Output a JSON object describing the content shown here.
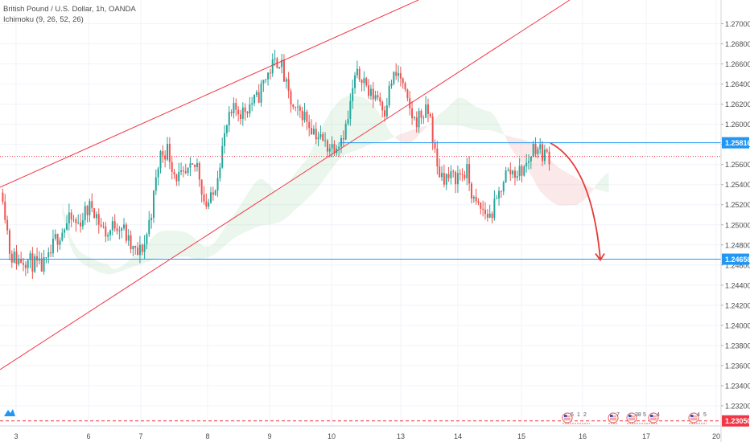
{
  "header": {
    "symbol_line": "British Pound / U.S. Dollar, 1h, OANDA",
    "indicator_line": "Ichimoku (9, 26, 52, 26)"
  },
  "chart_data": {
    "type": "candlestick",
    "title": "British Pound / U.S. Dollar, 1h, OANDA",
    "indicator": "Ichimoku (9, 26, 52, 26)",
    "ylim": [
      1.23,
      1.2722
    ],
    "y_ticks": [
      "1.27000",
      "1.26800",
      "1.26600",
      "1.26400",
      "1.26200",
      "1.26000",
      "1.25800",
      "1.25600",
      "1.25400",
      "1.25200",
      "1.25000",
      "1.24800",
      "1.24600",
      "1.24400",
      "1.24200",
      "1.24000",
      "1.23800",
      "1.23600",
      "1.23400",
      "1.23200"
    ],
    "x_ticks": [
      "3",
      "6",
      "7",
      "8",
      "9",
      "10",
      "13",
      "14",
      "15",
      "16",
      "17",
      "20"
    ],
    "price_labels": {
      "upper_level": "1.25816",
      "lower_level": "1.24658",
      "bottom_level": "1.23050"
    },
    "levels": {
      "upper": 1.25816,
      "lower": 1.24658,
      "current_dotted": 1.2568,
      "bottom_dashed": 1.2305
    },
    "candle_path": [
      1.2532,
      1.247,
      1.2465,
      1.2466,
      1.2462,
      1.2457,
      1.2462,
      1.2485,
      1.2495,
      1.2505,
      1.25,
      1.2512,
      1.252,
      1.25,
      1.249,
      1.2502,
      1.2498,
      1.2478,
      1.247,
      1.2482,
      1.252,
      1.257,
      1.2575,
      1.255,
      1.2545,
      1.2552,
      1.256,
      1.252,
      1.2525,
      1.2565,
      1.26,
      1.2615,
      1.2612,
      1.262,
      1.2625,
      1.2645,
      1.2658,
      1.2665,
      1.2632,
      1.261,
      1.2612,
      1.26,
      1.259,
      1.258,
      1.2578,
      1.2585,
      1.26,
      1.2645,
      1.265,
      1.2628,
      1.263,
      1.2615,
      1.2645,
      1.265,
      1.262,
      1.2603,
      1.261,
      1.2612,
      1.2555,
      1.2548,
      1.2546,
      1.255,
      1.2552,
      1.252,
      1.2515,
      1.2508,
      1.2522,
      1.255,
      1.2553,
      1.2552,
      1.256,
      1.258,
      1.2572,
      1.2568
    ],
    "events": [
      "5",
      "1",
      "2",
      "7",
      "38",
      "5",
      "4",
      "4",
      "5"
    ],
    "colors": {
      "up": "#26a69a",
      "down": "#ef5350",
      "trend": "#f23645",
      "level": "#2196f3",
      "cloud_bull": "#a5d6a7",
      "cloud_bear": "#ef9a9a",
      "grid": "#f0f3fa",
      "axis_text": "#4a4a4a"
    }
  }
}
